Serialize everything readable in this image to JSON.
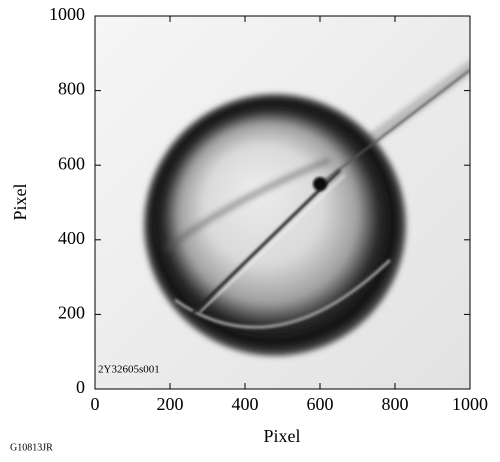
{
  "chart_data": {
    "type": "image",
    "xlabel": "Pixel",
    "ylabel": "Pixel",
    "xlim": [
      0,
      1000
    ],
    "ylim": [
      0,
      1000
    ],
    "xticks": [
      0,
      200,
      400,
      600,
      800,
      1000
    ],
    "yticks": [
      0,
      200,
      400,
      600,
      800,
      1000
    ],
    "annotation": "2Y32605s001"
  },
  "figure_id": "G10813JR"
}
